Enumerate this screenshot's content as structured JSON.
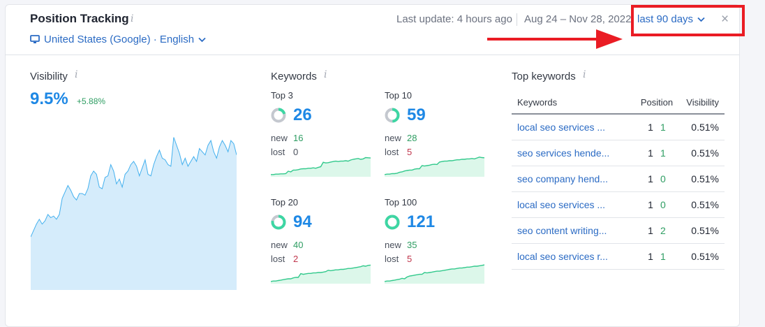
{
  "header": {
    "title": "Position Tracking",
    "info_glyph": "i",
    "location": "United States (Google) · English",
    "last_update": "Last update: 4 hours ago",
    "date_range": "Aug 24 – Nov 28, 2022",
    "period": "last 90 days",
    "close_glyph": "×"
  },
  "visibility": {
    "label": "Visibility",
    "value": "9.5%",
    "delta": "+5.88%",
    "series": [
      0.33,
      0.37,
      0.41,
      0.44,
      0.41,
      0.43,
      0.47,
      0.45,
      0.46,
      0.44,
      0.47,
      0.57,
      0.61,
      0.65,
      0.62,
      0.58,
      0.56,
      0.6,
      0.6,
      0.59,
      0.63,
      0.71,
      0.74,
      0.72,
      0.64,
      0.63,
      0.7,
      0.71,
      0.78,
      0.74,
      0.66,
      0.69,
      0.64,
      0.72,
      0.74,
      0.78,
      0.8,
      0.77,
      0.71,
      0.76,
      0.81,
      0.72,
      0.71,
      0.78,
      0.83,
      0.87,
      0.82,
      0.81,
      0.78,
      0.77,
      0.95,
      0.9,
      0.85,
      0.78,
      0.82,
      0.77,
      0.8,
      0.83,
      0.8,
      0.88,
      0.86,
      0.84,
      0.9,
      0.93,
      0.86,
      0.82,
      0.89,
      0.93,
      0.9,
      0.86,
      0.93,
      0.91,
      0.84
    ],
    "fill_color": "#d5ecfb",
    "line_color": "#43b0ee"
  },
  "keywords": {
    "label": "Keywords",
    "new_label": "new",
    "lost_label": "lost",
    "groups": [
      {
        "caption": "Top 3",
        "count": "26",
        "new": "16",
        "lost": "0",
        "ratio": 0.21,
        "spark": [
          0.1,
          0.1,
          0.12,
          0.12,
          0.13,
          0.13,
          0.14,
          0.25,
          0.22,
          0.3,
          0.3,
          0.32,
          0.35,
          0.36,
          0.36,
          0.38,
          0.38,
          0.4,
          0.38,
          0.42,
          0.45,
          0.65,
          0.62,
          0.63,
          0.66,
          0.68,
          0.7,
          0.68,
          0.7,
          0.7,
          0.72,
          0.7,
          0.75,
          0.78,
          0.8,
          0.82,
          0.78,
          0.8,
          0.86,
          0.85,
          0.84
        ]
      },
      {
        "caption": "Top 10",
        "count": "59",
        "new": "28",
        "lost": "5",
        "ratio": 0.49,
        "spark": [
          0.1,
          0.12,
          0.12,
          0.14,
          0.14,
          0.16,
          0.2,
          0.22,
          0.26,
          0.28,
          0.3,
          0.3,
          0.34,
          0.36,
          0.36,
          0.5,
          0.48,
          0.5,
          0.52,
          0.55,
          0.56,
          0.55,
          0.66,
          0.68,
          0.7,
          0.7,
          0.72,
          0.72,
          0.74,
          0.76,
          0.76,
          0.78,
          0.78,
          0.8,
          0.8,
          0.82,
          0.8,
          0.84,
          0.88,
          0.86,
          0.85
        ]
      },
      {
        "caption": "Top 20",
        "count": "94",
        "new": "40",
        "lost": "2",
        "ratio": 0.78,
        "spark": [
          0.1,
          0.12,
          0.12,
          0.14,
          0.16,
          0.18,
          0.2,
          0.22,
          0.22,
          0.26,
          0.28,
          0.28,
          0.45,
          0.42,
          0.44,
          0.46,
          0.46,
          0.48,
          0.48,
          0.5,
          0.5,
          0.52,
          0.54,
          0.6,
          0.58,
          0.6,
          0.62,
          0.62,
          0.64,
          0.64,
          0.66,
          0.68,
          0.68,
          0.7,
          0.72,
          0.74,
          0.76,
          0.8,
          0.78,
          0.82,
          0.83
        ]
      },
      {
        "caption": "Top 100",
        "count": "121",
        "new": "35",
        "lost": "5",
        "ratio": 0.99,
        "spark": [
          0.1,
          0.12,
          0.12,
          0.14,
          0.16,
          0.18,
          0.2,
          0.24,
          0.22,
          0.3,
          0.34,
          0.36,
          0.38,
          0.4,
          0.42,
          0.42,
          0.5,
          0.48,
          0.5,
          0.52,
          0.54,
          0.56,
          0.56,
          0.58,
          0.6,
          0.62,
          0.64,
          0.66,
          0.66,
          0.68,
          0.7,
          0.7,
          0.72,
          0.74,
          0.74,
          0.76,
          0.78,
          0.78,
          0.8,
          0.82,
          0.84
        ]
      }
    ],
    "ring_track_color": "#c4c8cf",
    "ring_fill_color": "#3dd6a3",
    "spark_fill": "#dcf7ea",
    "spark_line": "#32c98c"
  },
  "top_keywords": {
    "label": "Top keywords",
    "columns": [
      "Keywords",
      "Position",
      "Visibility"
    ],
    "rows": [
      {
        "keyword": "local seo services ...",
        "pos_from": "1",
        "pos_to": "1",
        "visibility": "0.51%"
      },
      {
        "keyword": "seo services hende...",
        "pos_from": "1",
        "pos_to": "1",
        "visibility": "0.51%"
      },
      {
        "keyword": "seo company hend...",
        "pos_from": "1",
        "pos_to": "0",
        "visibility": "0.51%"
      },
      {
        "keyword": "local seo services ...",
        "pos_from": "1",
        "pos_to": "0",
        "visibility": "0.51%"
      },
      {
        "keyword": "seo content writing...",
        "pos_from": "1",
        "pos_to": "2",
        "visibility": "0.51%"
      },
      {
        "keyword": "local seo services r...",
        "pos_from": "1",
        "pos_to": "1",
        "visibility": "0.51%"
      }
    ]
  },
  "annotation": {
    "color": "#ea1c24"
  }
}
